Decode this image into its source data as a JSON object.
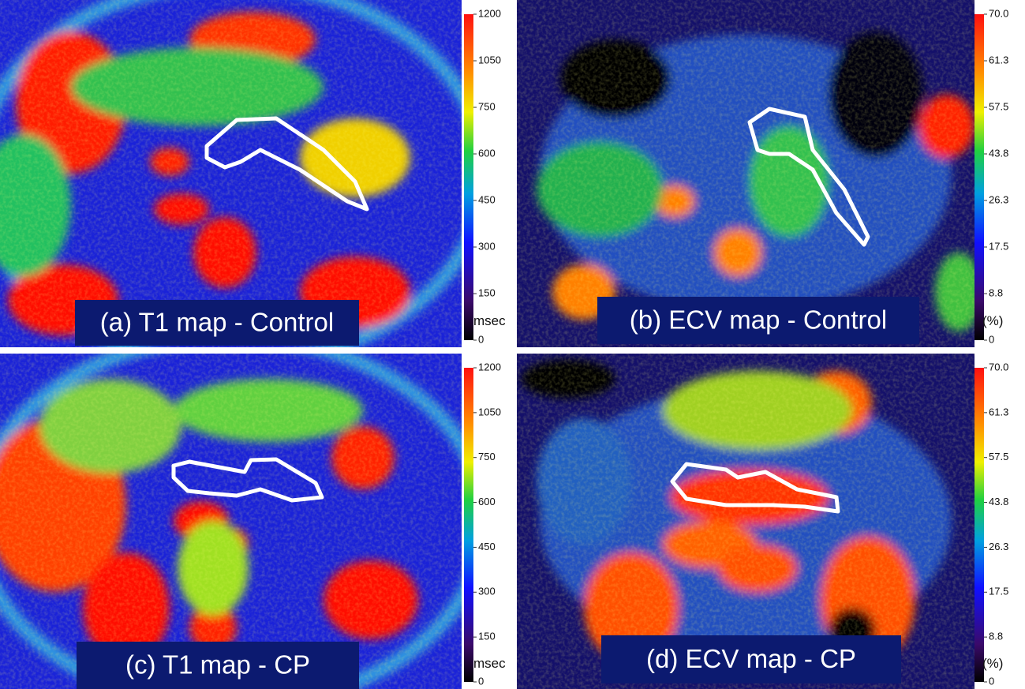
{
  "panels": [
    {
      "label": "(a) T1 map - Control",
      "unit": "msec",
      "ticks": [
        "1200",
        "1050",
        "750",
        "600",
        "450",
        "300",
        "150",
        "0"
      ]
    },
    {
      "label": "(b) ECV map - Control",
      "unit": "(%)",
      "ticks": [
        "70.0",
        "61.3",
        "57.5",
        "43.8",
        "26.3",
        "17.5",
        "8.8",
        "0"
      ]
    },
    {
      "label": "(c) T1 map - CP",
      "unit": "msec",
      "ticks": [
        "1200",
        "1050",
        "750",
        "600",
        "450",
        "300",
        "150",
        "0"
      ]
    },
    {
      "label": "(d) ECV map - CP",
      "unit": "(%)",
      "ticks": [
        "70.0",
        "61.3",
        "57.5",
        "43.8",
        "26.3",
        "17.5",
        "8.8",
        "0"
      ]
    }
  ]
}
